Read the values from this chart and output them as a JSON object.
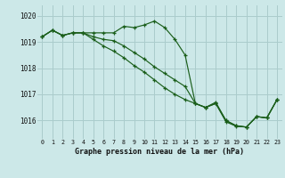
{
  "title": "Graphe pression niveau de la mer (hPa)",
  "background_color": "#cce8e8",
  "grid_color": "#aacccc",
  "line_color": "#1a5e1a",
  "x_labels": [
    "0",
    "1",
    "2",
    "3",
    "4",
    "5",
    "6",
    "7",
    "8",
    "9",
    "10",
    "11",
    "12",
    "13",
    "14",
    "15",
    "16",
    "17",
    "18",
    "19",
    "20",
    "21",
    "22",
    "23"
  ],
  "ylim": [
    1015.3,
    1020.4
  ],
  "yticks": [
    1016,
    1017,
    1018,
    1019,
    1020
  ],
  "series1": [
    1019.2,
    1019.45,
    1019.25,
    1019.35,
    1019.35,
    1019.35,
    1019.35,
    1019.35,
    1019.6,
    1019.55,
    1019.65,
    1019.8,
    1019.55,
    1019.1,
    1018.5,
    1016.65,
    1016.5,
    1016.7,
    1016.0,
    1015.8,
    1015.75,
    1016.15,
    1016.1,
    1016.8
  ],
  "series2": [
    1019.2,
    1019.45,
    1019.25,
    1019.35,
    1019.35,
    1019.2,
    1019.1,
    1019.05,
    1018.85,
    1018.6,
    1018.35,
    1018.05,
    1017.8,
    1017.55,
    1017.3,
    1016.65,
    1016.5,
    1016.65,
    1016.0,
    1015.8,
    1015.75,
    1016.15,
    1016.1,
    1016.8
  ],
  "series3": [
    1019.2,
    1019.45,
    1019.25,
    1019.35,
    1019.35,
    1019.1,
    1018.85,
    1018.65,
    1018.4,
    1018.1,
    1017.85,
    1017.55,
    1017.25,
    1017.0,
    1016.8,
    1016.65,
    1016.5,
    1016.65,
    1015.95,
    1015.78,
    1015.75,
    1016.15,
    1016.1,
    1016.8
  ]
}
